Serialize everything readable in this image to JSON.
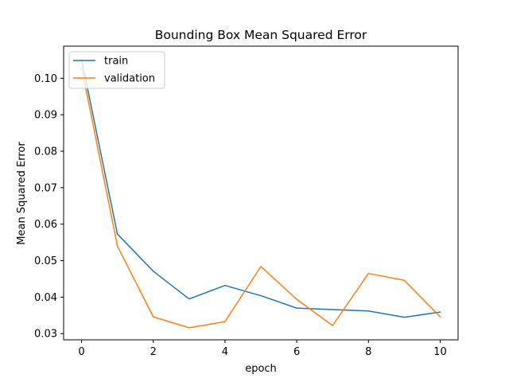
{
  "chart_data": {
    "type": "line",
    "title": "Bounding Box Mean Squared Error",
    "xlabel": "epoch",
    "ylabel": "Mean Squared Error",
    "xlim": [
      -0.5,
      10.5
    ],
    "ylim": [
      0.0283,
      0.1088
    ],
    "xticks": [
      0,
      2,
      4,
      6,
      8,
      10
    ],
    "yticks": [
      0.03,
      0.04,
      0.05,
      0.06,
      0.07,
      0.08,
      0.09,
      0.1
    ],
    "ytick_labels": [
      "0.03",
      "0.04",
      "0.05",
      "0.06",
      "0.07",
      "0.08",
      "0.09",
      "0.10"
    ],
    "x": [
      0,
      1,
      2,
      3,
      4,
      5,
      6,
      7,
      8,
      9,
      10
    ],
    "series": [
      {
        "name": "train",
        "color": "#1f77b4",
        "values": [
          0.1052,
          0.0573,
          0.0471,
          0.0395,
          0.0432,
          0.0404,
          0.037,
          0.0366,
          0.0362,
          0.0345,
          0.0359
        ]
      },
      {
        "name": "validation",
        "color": "#ff7f0e",
        "values": [
          0.103,
          0.054,
          0.0346,
          0.0316,
          0.0333,
          0.0484,
          0.0394,
          0.0322,
          0.0465,
          0.0446,
          0.0346
        ]
      }
    ],
    "legend": "upper left",
    "grid": false
  }
}
